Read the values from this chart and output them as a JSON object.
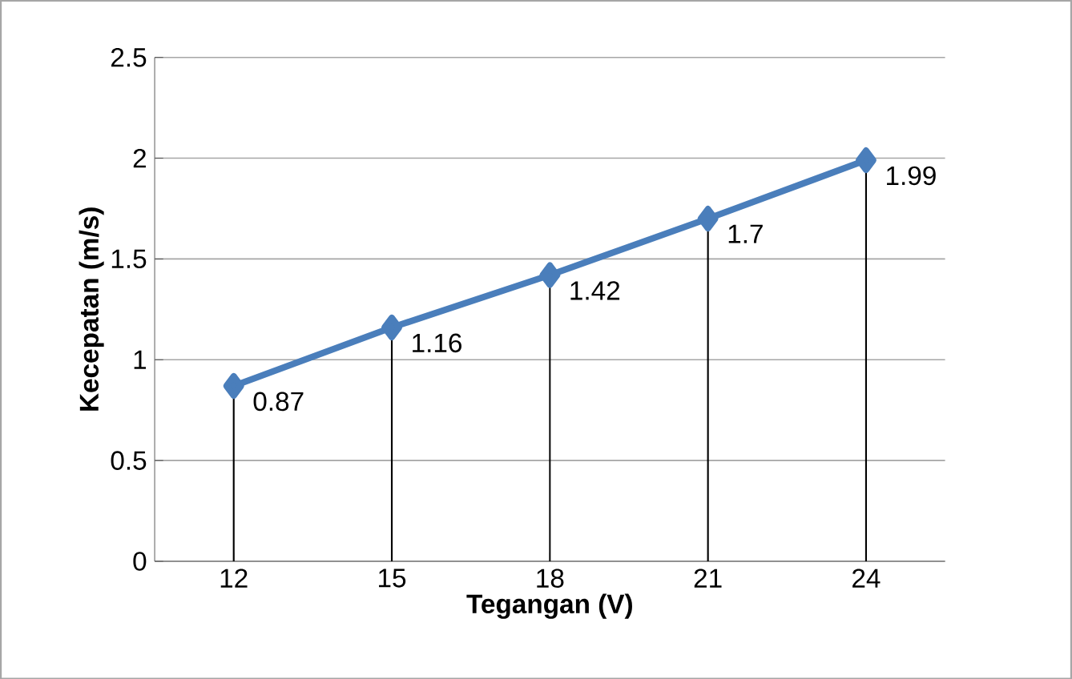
{
  "chart_data": {
    "type": "line",
    "xlabel": "Tegangan (V)",
    "ylabel": "Kecepatan (m/s)",
    "categories": [
      "12",
      "15",
      "18",
      "21",
      "24"
    ],
    "values": [
      0.87,
      1.16,
      1.42,
      1.7,
      1.99
    ],
    "errors": [
      [
        0,
        0.87
      ],
      [
        0,
        1.16
      ],
      [
        0,
        1.42
      ],
      [
        0,
        1.7
      ],
      [
        0,
        1.99
      ]
    ],
    "color": "#4a7ebb",
    "marker": "diamond",
    "line_style": "solid",
    "ylim": [
      0,
      2.5
    ],
    "yticks": [
      0,
      0.5,
      1,
      1.5,
      2,
      2.5
    ],
    "grid": "y",
    "data_labels": true
  }
}
